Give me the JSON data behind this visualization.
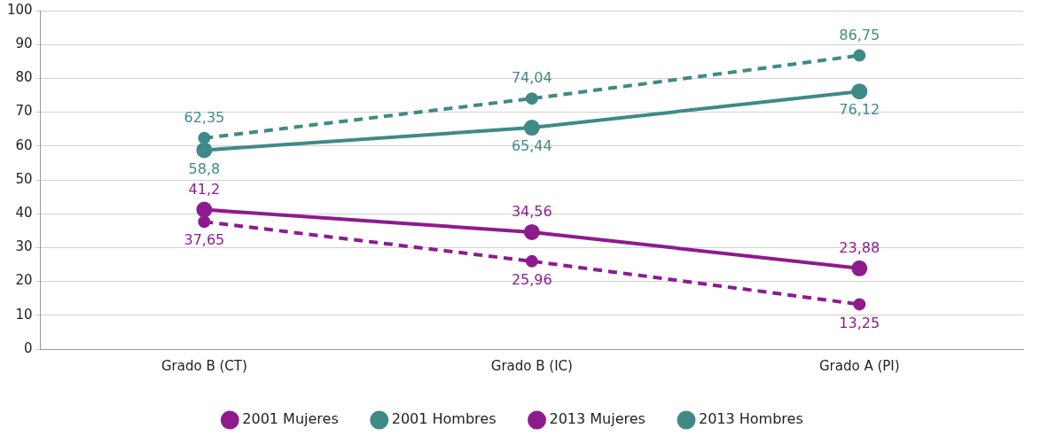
{
  "chart_data": {
    "type": "line",
    "categories": [
      "Grado B (CT)",
      "Grado B (IC)",
      "Grado A (PI)"
    ],
    "series": [
      {
        "name": "2001 Mujeres",
        "color": "#8e1b8e",
        "line_style": "dashed",
        "values": [
          37.65,
          25.96,
          13.25
        ],
        "value_labels": [
          "37,65",
          "25,96",
          "13,25"
        ]
      },
      {
        "name": "2001 Hombres",
        "color": "#3f8a86",
        "line_style": "dashed",
        "values": [
          62.35,
          74.04,
          86.75
        ],
        "value_labels": [
          "62,35",
          "74,04",
          "86,75"
        ]
      },
      {
        "name": "2013 Mujeres",
        "color": "#8e1b8e",
        "line_style": "solid",
        "values": [
          41.2,
          34.56,
          23.88
        ],
        "value_labels": [
          "41,2",
          "34,56",
          "23,88"
        ]
      },
      {
        "name": "2013 Hombres",
        "color": "#3f8a86",
        "line_style": "solid",
        "values": [
          58.8,
          65.44,
          76.12
        ],
        "value_labels": [
          "58,8",
          "65,44",
          "76,12"
        ]
      }
    ],
    "ylim": [
      0,
      100
    ],
    "yticks": [
      0,
      10,
      20,
      30,
      40,
      50,
      60,
      70,
      80,
      90,
      100
    ],
    "grid": "y",
    "legend": "bottom",
    "marker": "circle"
  }
}
